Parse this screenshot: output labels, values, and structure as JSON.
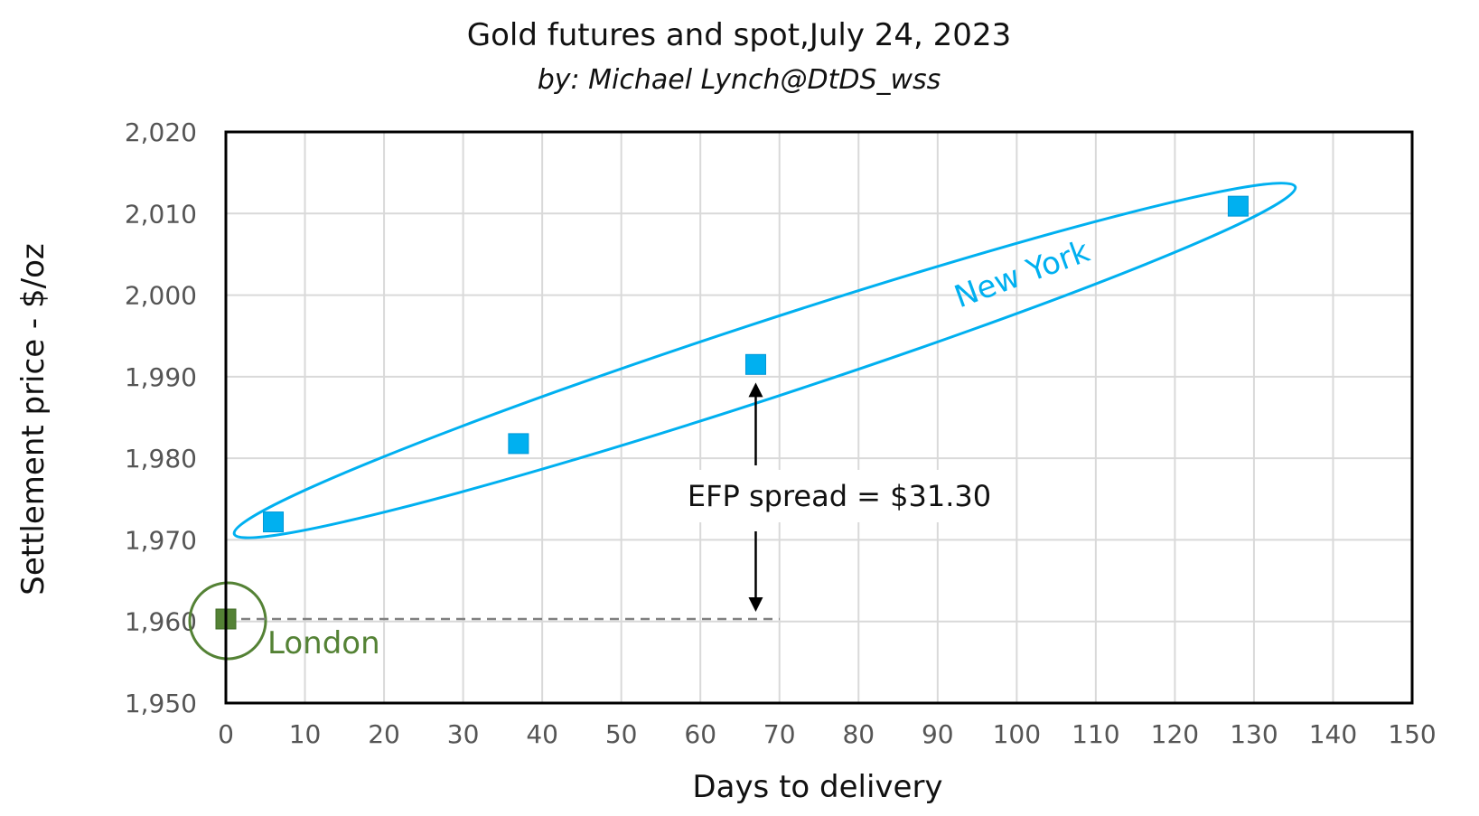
{
  "chart_data": {
    "type": "scatter",
    "title": "Gold futures and spot,July 24, 2023",
    "subtitle": "by:  Michael Lynch@DtDS_wss",
    "xlabel": "Days to delivery",
    "ylabel": "Settlement price - $/oz",
    "xlim": [
      0,
      150
    ],
    "ylim": [
      1950,
      2020
    ],
    "xticks": [
      0,
      10,
      20,
      30,
      40,
      50,
      60,
      70,
      80,
      90,
      100,
      110,
      120,
      130,
      140,
      150
    ],
    "xtick_labels": [
      "0",
      "10",
      "20",
      "30",
      "40",
      "50",
      "60",
      "70",
      "80",
      "90",
      "100",
      "110",
      "120",
      "130",
      "140",
      "150"
    ],
    "yticks": [
      1950,
      1960,
      1970,
      1980,
      1990,
      2000,
      2010,
      2020
    ],
    "ytick_labels": [
      "1,950",
      "1,960",
      "1,970",
      "1,980",
      "1,990",
      "2,000",
      "2,010",
      "2,020"
    ],
    "grid": true,
    "series": [
      {
        "color": "#00b0f0",
        "marker": "square",
        "points": [
          {
            "x": 6,
            "y": 1972.2
          },
          {
            "x": 37,
            "y": 1981.8
          },
          {
            "x": 67,
            "y": 1991.5
          },
          {
            "x": 128,
            "y": 2010.9
          }
        ]
      },
      {
        "color": "#548235",
        "marker": "square",
        "points": [
          {
            "x": 0,
            "y": 1960.3
          }
        ]
      }
    ],
    "annotations": {
      "new_york": {
        "text": "New York",
        "color": "#00b0f0"
      },
      "london": {
        "text": "London",
        "color": "#548235"
      },
      "efp": {
        "text": "EFP spread = $31.30"
      }
    }
  }
}
